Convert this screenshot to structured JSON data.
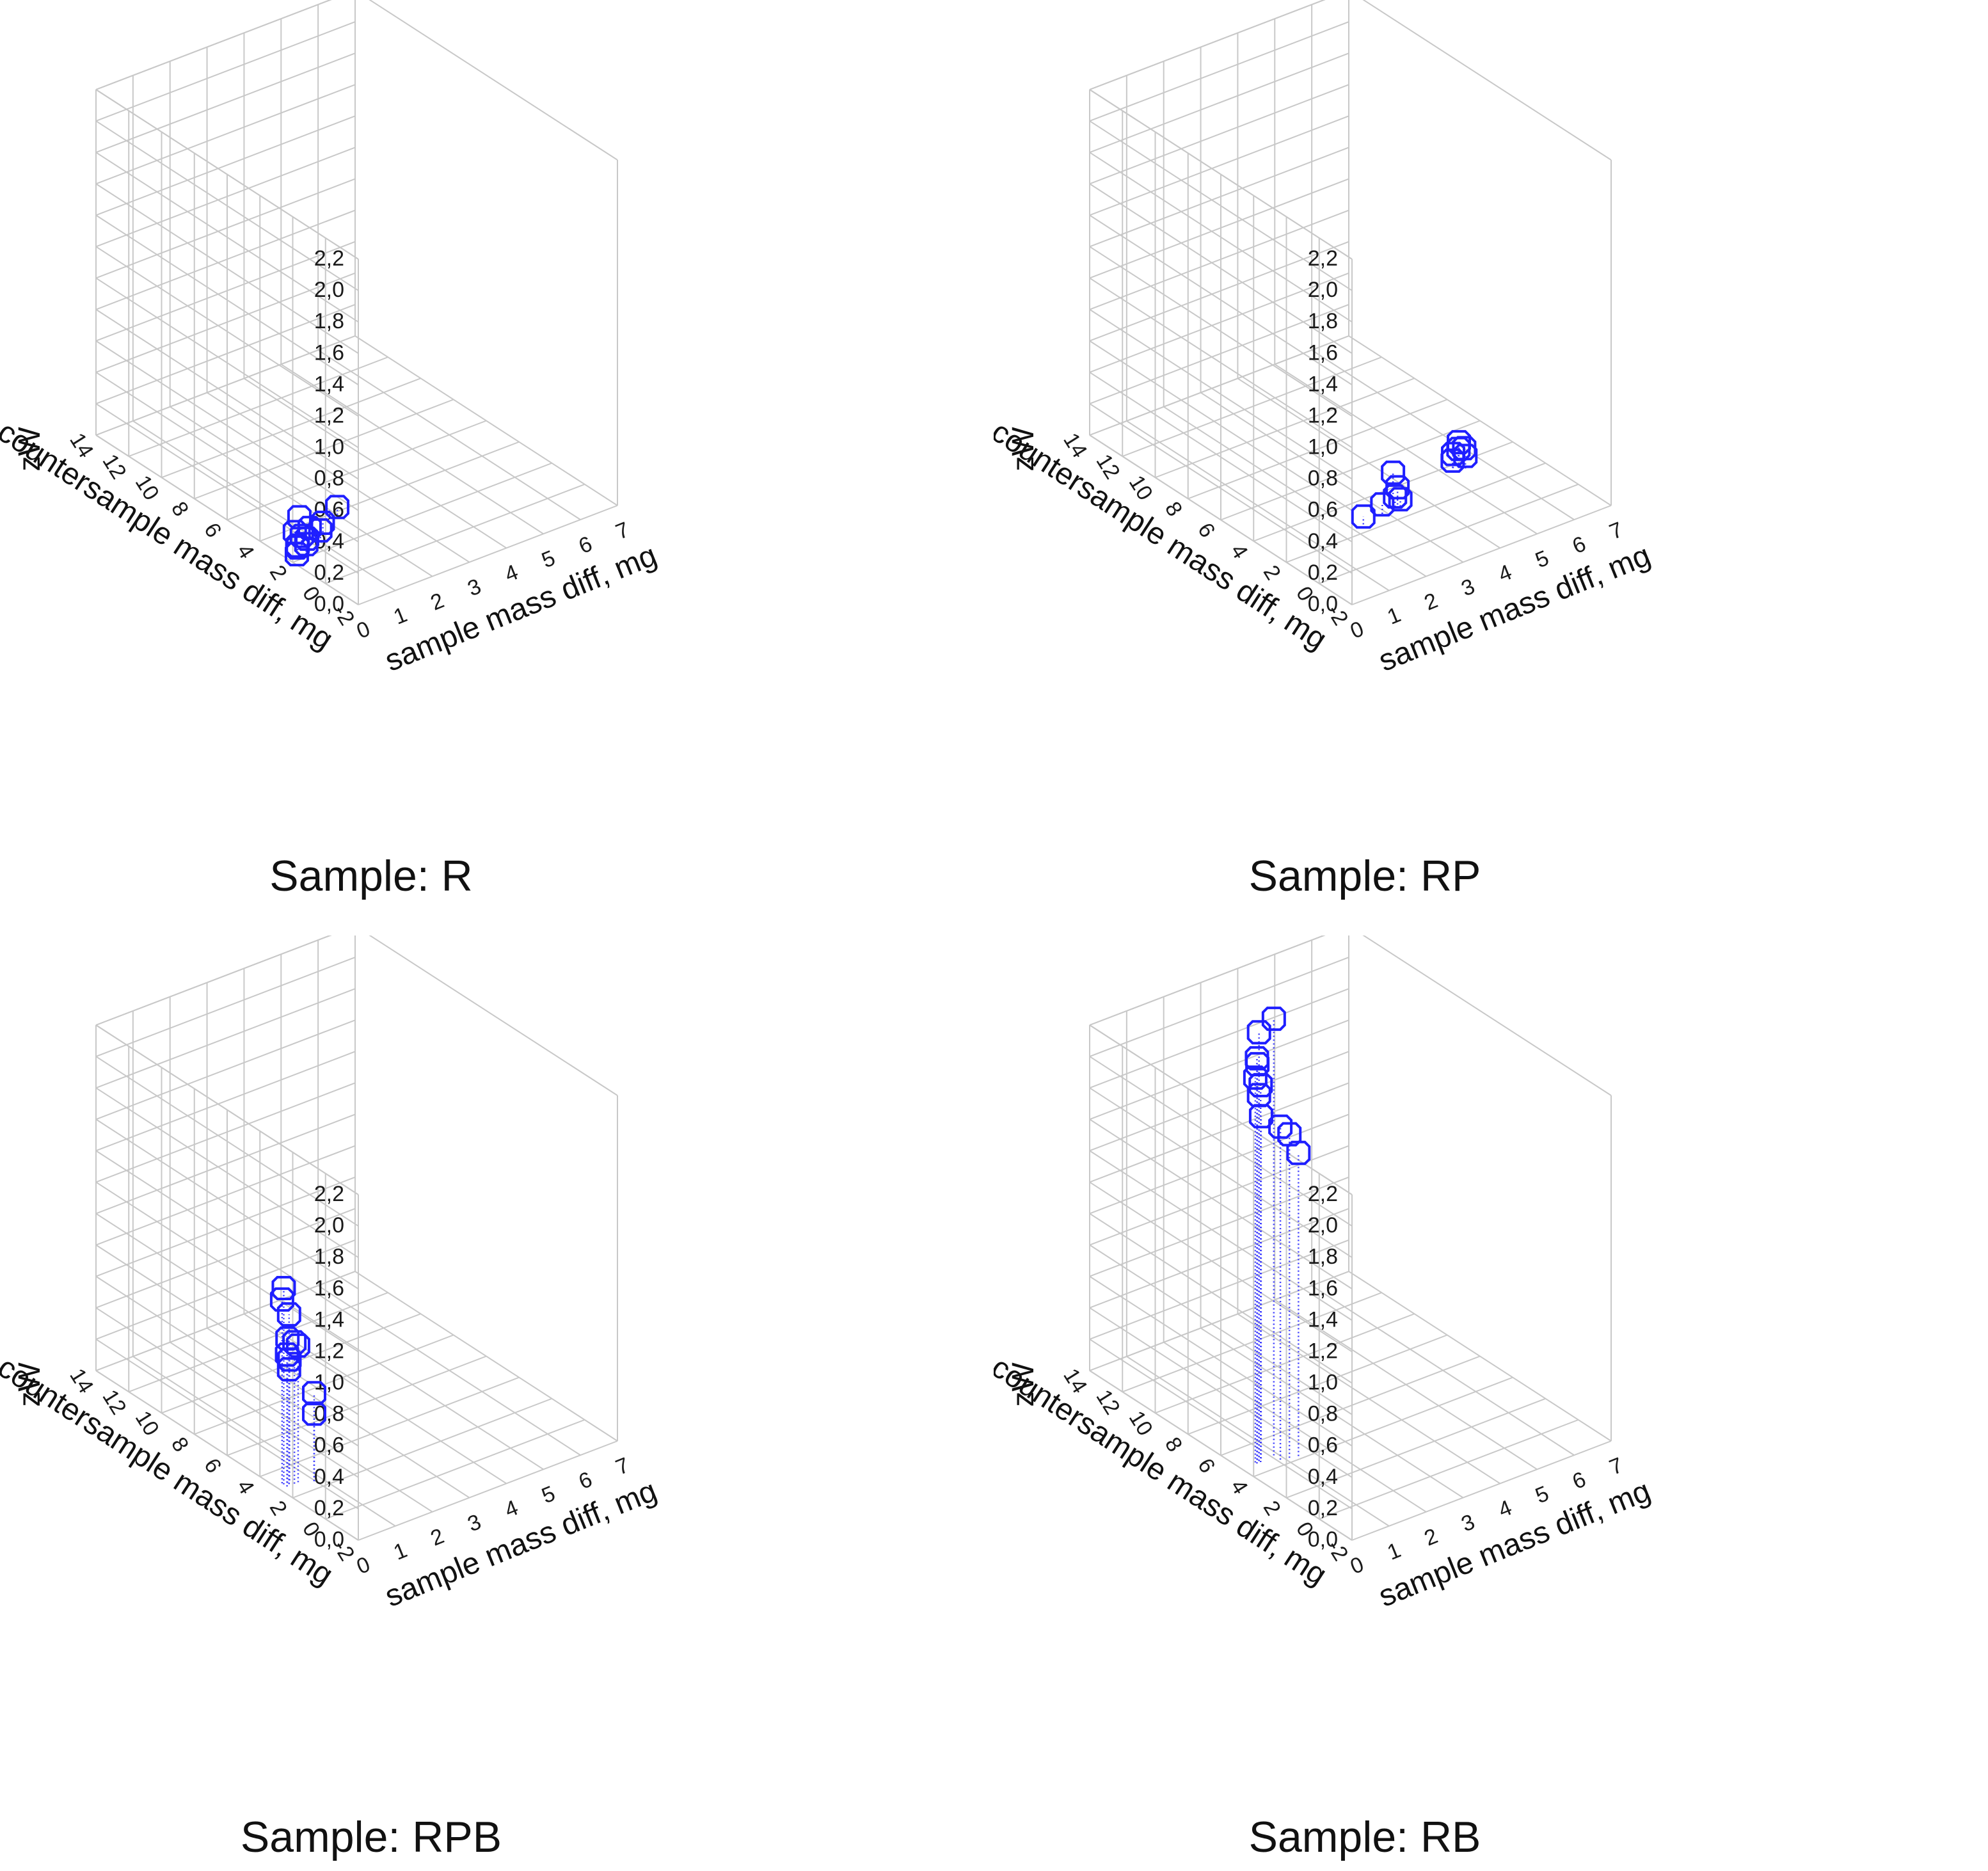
{
  "chart_data": [
    {
      "type": "scatter3d",
      "title": "Sample: R",
      "xlabel": "sample mass diff, mg",
      "ylabel": "countersample mass diff, mg",
      "zlabel": "zW",
      "xlim": [
        0,
        7
      ],
      "ylim": [
        -2,
        14
      ],
      "zlim": [
        0,
        2.2
      ],
      "x_ticks": [
        "0",
        "1",
        "2",
        "3",
        "4",
        "5",
        "6",
        "7"
      ],
      "y_ticks": [
        "-2",
        "0",
        "2",
        "4",
        "6",
        "8",
        "10",
        "12",
        "14"
      ],
      "z_ticks": [
        "0,0",
        "0,2",
        "0,4",
        "0,6",
        "0,8",
        "1,0",
        "1,2",
        "1,4",
        "1,6",
        "1,8",
        "2,0",
        "2,2"
      ],
      "points": [
        {
          "x": 0.2,
          "y": 2.2,
          "z": 0.02
        },
        {
          "x": 0.3,
          "y": 2.4,
          "z": 0.04
        },
        {
          "x": 0.4,
          "y": 2.6,
          "z": 0.03
        },
        {
          "x": 0.5,
          "y": 2.3,
          "z": 0.05
        },
        {
          "x": 0.6,
          "y": 2.8,
          "z": 0.06
        },
        {
          "x": 0.8,
          "y": 3.4,
          "z": 0.12
        },
        {
          "x": 0.7,
          "y": 2.7,
          "z": 0.04
        },
        {
          "x": 0.9,
          "y": 3.0,
          "z": 0.07
        },
        {
          "x": 1.1,
          "y": 2.8,
          "z": 0.05
        },
        {
          "x": 1.3,
          "y": 3.1,
          "z": 0.06
        },
        {
          "x": 0.5,
          "y": 3.0,
          "z": 0.08
        },
        {
          "x": 2.0,
          "y": 3.8,
          "z": 0.05
        }
      ]
    },
    {
      "type": "scatter3d",
      "title": "Sample: RP",
      "xlabel": "sample mass diff, mg",
      "ylabel": "countersample mass diff, mg",
      "zlabel": "zW",
      "xlim": [
        0,
        7
      ],
      "ylim": [
        -2,
        14
      ],
      "zlim": [
        0,
        2.2
      ],
      "x_ticks": [
        "0",
        "1",
        "2",
        "3",
        "4",
        "5",
        "6",
        "7"
      ],
      "y_ticks": [
        "-2",
        "0",
        "2",
        "4",
        "6",
        "8",
        "10",
        "12",
        "14"
      ],
      "z_ticks": [
        "0,0",
        "0,2",
        "0,4",
        "0,6",
        "0,8",
        "1,0",
        "1,2",
        "1,4",
        "1,6",
        "1,8",
        "2,0",
        "2,2"
      ],
      "points": [
        {
          "x": 2.3,
          "y": 2.5,
          "z": 0.05
        },
        {
          "x": 2.9,
          "y": 2.7,
          "z": 0.06
        },
        {
          "x": 3.2,
          "y": 2.6,
          "z": 0.09
        },
        {
          "x": 3.4,
          "y": 2.9,
          "z": 0.11
        },
        {
          "x": 3.5,
          "y": 3.4,
          "z": 0.16
        },
        {
          "x": 3.3,
          "y": 2.5,
          "z": 0.07
        },
        {
          "x": 5.2,
          "y": 3.6,
          "z": 0.07
        },
        {
          "x": 5.3,
          "y": 3.8,
          "z": 0.09
        },
        {
          "x": 5.4,
          "y": 3.7,
          "z": 0.12
        },
        {
          "x": 5.5,
          "y": 3.9,
          "z": 0.14
        },
        {
          "x": 5.6,
          "y": 3.8,
          "z": 0.1
        },
        {
          "x": 5.5,
          "y": 3.5,
          "z": 0.08
        }
      ]
    },
    {
      "type": "scatter3d",
      "title": "Sample: RPB",
      "xlabel": "sample mass diff, mg",
      "ylabel": "countersample mass diff, mg",
      "zlabel": "zW",
      "xlim": [
        0,
        7
      ],
      "ylim": [
        -2,
        14
      ],
      "zlim": [
        0,
        2.2
      ],
      "x_ticks": [
        "0",
        "1",
        "2",
        "3",
        "4",
        "5",
        "6",
        "7"
      ],
      "y_ticks": [
        "-2",
        "0",
        "2",
        "4",
        "6",
        "8",
        "10",
        "12",
        "14"
      ],
      "z_ticks": [
        "0,0",
        "0,2",
        "0,4",
        "0,6",
        "0,8",
        "1,0",
        "1,2",
        "1,4",
        "1,6",
        "1,8",
        "2,0",
        "2,2"
      ],
      "points": [
        {
          "x": 0.2,
          "y": 3.0,
          "z": 1.25
        },
        {
          "x": 0.2,
          "y": 3.1,
          "z": 1.17
        },
        {
          "x": 0.3,
          "y": 2.9,
          "z": 1.08
        },
        {
          "x": 0.3,
          "y": 3.0,
          "z": 0.92
        },
        {
          "x": 0.4,
          "y": 2.8,
          "z": 0.9
        },
        {
          "x": 0.5,
          "y": 2.8,
          "z": 0.87
        },
        {
          "x": 0.2,
          "y": 2.8,
          "z": 0.84
        },
        {
          "x": 0.4,
          "y": 3.1,
          "z": 0.77
        },
        {
          "x": 0.3,
          "y": 2.9,
          "z": 0.73
        },
        {
          "x": 0.8,
          "y": 2.5,
          "z": 0.56
        },
        {
          "x": 0.8,
          "y": 2.5,
          "z": 0.43
        }
      ]
    },
    {
      "type": "scatter3d",
      "title": "Sample: RB",
      "xlabel": "sample mass diff, mg",
      "ylabel": "countersample mass diff, mg",
      "zlabel": "zW",
      "xlim": [
        0,
        7
      ],
      "ylim": [
        -2,
        14
      ],
      "zlim": [
        0,
        2.2
      ],
      "x_ticks": [
        "0",
        "1",
        "2",
        "3",
        "4",
        "5",
        "6",
        "7"
      ],
      "y_ticks": [
        "-2",
        "0",
        "2",
        "4",
        "6",
        "8",
        "10",
        "12",
        "14"
      ],
      "z_ticks": [
        "0,0",
        "0,2",
        "0,4",
        "0,6",
        "0,8",
        "1,0",
        "1,2",
        "1,4",
        "1,6",
        "1,8",
        "2,0",
        "2,2"
      ],
      "points": [
        {
          "x": 0.9,
          "y": 4.8,
          "z": 2.78
        },
        {
          "x": 0.5,
          "y": 4.8,
          "z": 2.73
        },
        {
          "x": 0.4,
          "y": 4.7,
          "z": 2.58
        },
        {
          "x": 0.5,
          "y": 4.9,
          "z": 2.52
        },
        {
          "x": 0.4,
          "y": 4.8,
          "z": 2.45
        },
        {
          "x": 0.5,
          "y": 4.7,
          "z": 2.4
        },
        {
          "x": 0.5,
          "y": 4.8,
          "z": 2.33
        },
        {
          "x": 0.6,
          "y": 4.9,
          "z": 2.18
        },
        {
          "x": 1.1,
          "y": 4.3,
          "z": 2.06
        },
        {
          "x": 1.3,
          "y": 4.2,
          "z": 1.93
        },
        {
          "x": 0.9,
          "y": 4.4,
          "z": 2.12
        }
      ]
    }
  ]
}
